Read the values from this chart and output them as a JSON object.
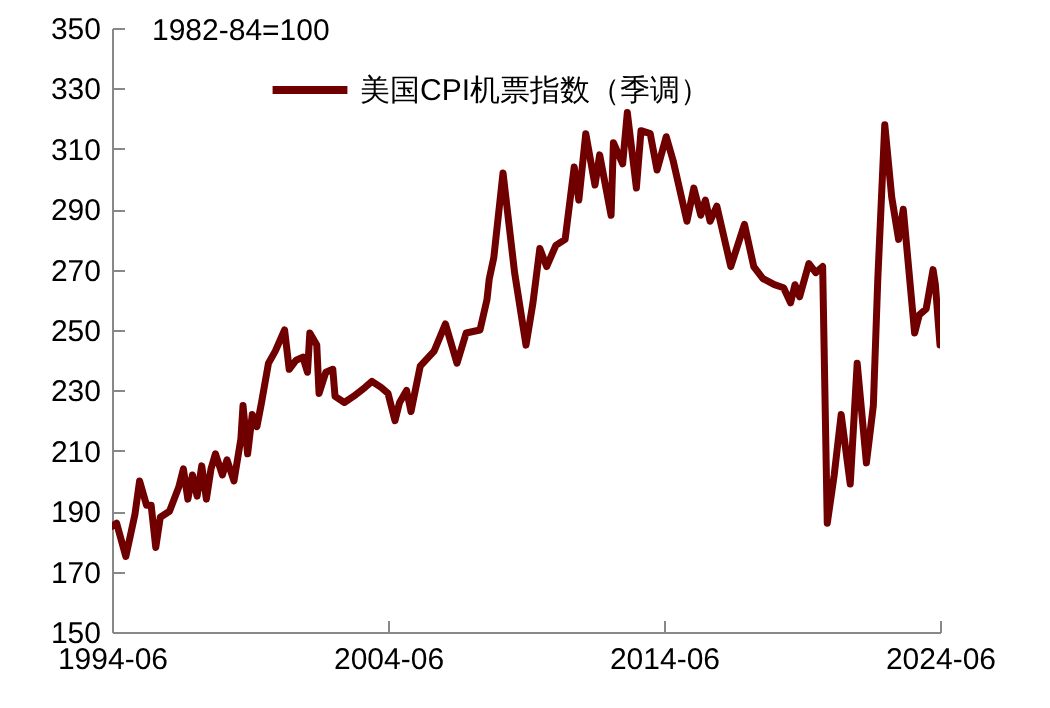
{
  "chart_data": {
    "type": "line",
    "annotations": [
      "1982-84=100"
    ],
    "x": [
      "1994-06",
      "1994-08",
      "1994-12",
      "1995-04",
      "1995-06",
      "1995-09",
      "1995-11",
      "1996-01",
      "1996-03",
      "1996-07",
      "1996-11",
      "1997-01",
      "1997-03",
      "1997-05",
      "1997-07",
      "1997-09",
      "1997-11",
      "1998-01",
      "1998-03",
      "1998-06",
      "1998-08",
      "1998-11",
      "1999-02",
      "1999-03",
      "1999-05",
      "1999-07",
      "1999-09",
      "1999-11",
      "2000-02",
      "2000-05",
      "2000-09",
      "2000-11",
      "2001-02",
      "2001-05",
      "2001-07",
      "2001-08",
      "2001-11",
      "2001-12",
      "2002-03",
      "2002-06",
      "2002-07",
      "2002-11",
      "2003-03",
      "2003-08",
      "2003-11",
      "2004-03",
      "2004-06",
      "2004-09",
      "2004-11",
      "2005-02",
      "2005-04",
      "2005-08",
      "2006-02",
      "2006-07",
      "2006-12",
      "2007-04",
      "2007-10",
      "2008-01",
      "2008-02",
      "2008-04",
      "2008-08",
      "2009-01",
      "2009-06",
      "2009-09",
      "2009-12",
      "2010-03",
      "2010-07",
      "2010-11",
      "2011-03",
      "2011-05",
      "2011-08",
      "2011-12",
      "2012-02",
      "2012-07",
      "2012-08",
      "2012-12",
      "2013-02",
      "2013-06",
      "2013-08",
      "2013-12",
      "2014-03",
      "2014-07",
      "2014-10",
      "2015-04",
      "2015-07",
      "2015-10",
      "2015-12",
      "2016-02",
      "2016-05",
      "2016-11",
      "2017-05",
      "2017-09",
      "2018-01",
      "2018-06",
      "2018-10",
      "2019-01",
      "2019-03",
      "2019-05",
      "2019-09",
      "2019-12",
      "2020-03",
      "2020-05",
      "2020-08",
      "2020-11",
      "2021-03",
      "2021-06",
      "2021-10",
      "2022-01",
      "2022-03",
      "2022-06",
      "2022-09",
      "2022-12",
      "2023-02",
      "2023-07",
      "2023-09",
      "2023-12",
      "2024-03",
      "2024-04",
      "2024-06"
    ],
    "series": [
      {
        "name": "美国CPI机票指数（季调）",
        "color": "#700000",
        "values": [
          185,
          186,
          175,
          189,
          200,
          192,
          192,
          178,
          188,
          190,
          198,
          204,
          194,
          202,
          195,
          205,
          194,
          204,
          209,
          202,
          207,
          200,
          214,
          225,
          209,
          222,
          218,
          226,
          239,
          243,
          250,
          237,
          240,
          241,
          236,
          249,
          245,
          229,
          236,
          237,
          228,
          226,
          228,
          231,
          233,
          231,
          229,
          220,
          226,
          230,
          223,
          238,
          243,
          252,
          239,
          249,
          250,
          260,
          267,
          274,
          302,
          269,
          245,
          259,
          277,
          271,
          278,
          280,
          304,
          293,
          315,
          298,
          308,
          288,
          312,
          305,
          322,
          297,
          316,
          315,
          303,
          314,
          306,
          286,
          297,
          288,
          293,
          286,
          291,
          271,
          285,
          271,
          267,
          265,
          264,
          259,
          265,
          261,
          272,
          269,
          271,
          186,
          202,
          222,
          199,
          239,
          206,
          225,
          267,
          318,
          294,
          280,
          290,
          249,
          255,
          257,
          270,
          265,
          245
        ]
      }
    ],
    "xlim": [
      "1994-06",
      "2024-06"
    ],
    "xticks": [
      "1994-06",
      "2004-06",
      "2014-06",
      "2024-06"
    ],
    "ylim": [
      150,
      350
    ],
    "yticks": [
      150,
      170,
      190,
      210,
      230,
      250,
      270,
      290,
      310,
      330,
      350
    ],
    "grid": false,
    "legend": "top",
    "line_style": "solid",
    "marker": "none"
  }
}
